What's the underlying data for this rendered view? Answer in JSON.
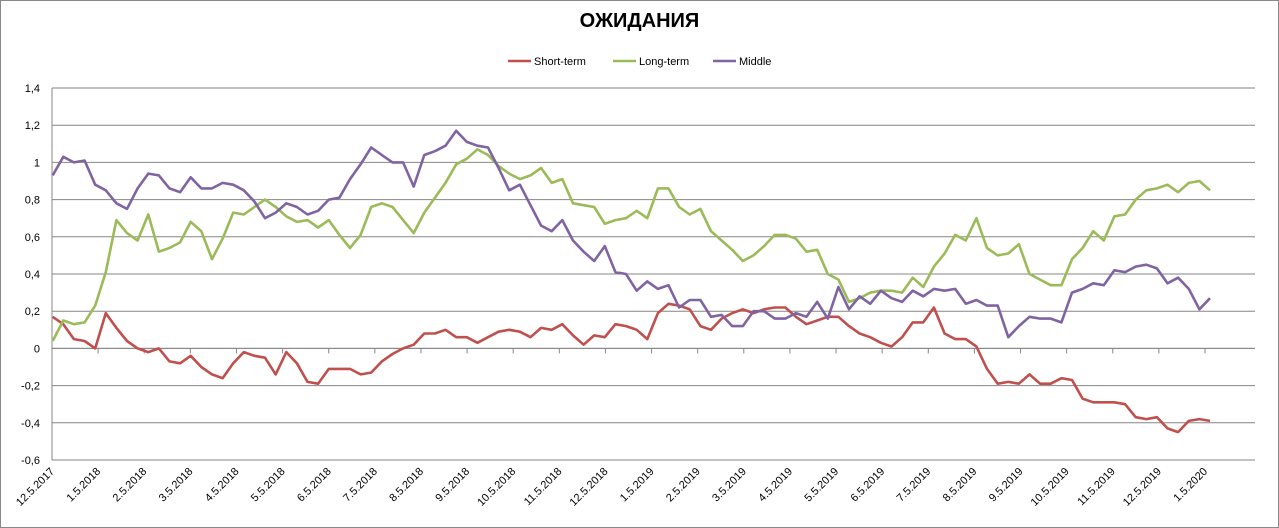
{
  "chart_data": {
    "type": "line",
    "title": "ОЖИДАНИЯ",
    "xlabel": "",
    "ylabel": "",
    "ylim": [
      -0.6,
      1.4
    ],
    "y_ticks": [
      "1,4",
      "1,2",
      "1",
      "0,8",
      "0,6",
      "0,4",
      "0,2",
      "0",
      "-0,2",
      "-0,4",
      "-0,6"
    ],
    "x_tick_labels": [
      "12.5.2017",
      "1.5.2018",
      "2.5.2018",
      "3.5.2018",
      "4.5.2018",
      "5.5.2018",
      "6.5.2018",
      "7.5.2018",
      "8.5.2018",
      "9.5.2018",
      "10.5.2018",
      "11.5.2018",
      "12.5.2018",
      "1.5.2019",
      "2.5.2019",
      "3.5.2019",
      "4.5.2019",
      "5.5.2019",
      "6.5.2019",
      "7.5.2019",
      "8.5.2019",
      "9.5.2019",
      "10.5.2019",
      "11.5.2019",
      "12.5.2019",
      "1.5.2020"
    ],
    "grid": true,
    "legend_position": "top",
    "series": [
      {
        "name": "Short-term",
        "color": "#C0504D",
        "values": [
          0.17,
          0.13,
          0.05,
          0.04,
          0.0,
          0.19,
          0.11,
          0.04,
          0.0,
          -0.02,
          0.0,
          -0.07,
          -0.08,
          -0.04,
          -0.1,
          -0.14,
          -0.16,
          -0.08,
          -0.02,
          -0.04,
          -0.05,
          -0.14,
          -0.02,
          -0.08,
          -0.18,
          -0.19,
          -0.11,
          -0.11,
          -0.11,
          -0.14,
          -0.13,
          -0.07,
          -0.03,
          0.0,
          0.02,
          0.08,
          0.08,
          0.1,
          0.06,
          0.06,
          0.03,
          0.06,
          0.09,
          0.1,
          0.09,
          0.06,
          0.11,
          0.1,
          0.13,
          0.07,
          0.02,
          0.07,
          0.06,
          0.13,
          0.12,
          0.1,
          0.05,
          0.19,
          0.24,
          0.23,
          0.21,
          0.12,
          0.1,
          0.16,
          0.19,
          0.21,
          0.19,
          0.21,
          0.22,
          0.22,
          0.17,
          0.13,
          0.15,
          0.17,
          0.17,
          0.12,
          0.08,
          0.06,
          0.03,
          0.01,
          0.06,
          0.14,
          0.14,
          0.22,
          0.08,
          0.05,
          0.05,
          0.01,
          -0.11,
          -0.19,
          -0.18,
          -0.19,
          -0.14,
          -0.19,
          -0.19,
          -0.16,
          -0.17,
          -0.27,
          -0.29,
          -0.29,
          -0.29,
          -0.3,
          -0.37,
          -0.38,
          -0.37,
          -0.43,
          -0.45,
          -0.39,
          -0.38,
          -0.39
        ]
      },
      {
        "name": "Long-term",
        "color": "#9BBB59",
        "values": [
          0.04,
          0.15,
          0.13,
          0.14,
          0.23,
          0.41,
          0.69,
          0.62,
          0.58,
          0.72,
          0.52,
          0.54,
          0.57,
          0.68,
          0.63,
          0.48,
          0.59,
          0.73,
          0.72,
          0.76,
          0.8,
          0.76,
          0.71,
          0.68,
          0.69,
          0.65,
          0.69,
          0.61,
          0.54,
          0.61,
          0.76,
          0.78,
          0.76,
          0.69,
          0.62,
          0.73,
          0.81,
          0.89,
          0.99,
          1.02,
          1.07,
          1.04,
          0.98,
          0.94,
          0.91,
          0.93,
          0.97,
          0.89,
          0.91,
          0.78,
          0.77,
          0.76,
          0.67,
          0.69,
          0.7,
          0.74,
          0.7,
          0.86,
          0.86,
          0.76,
          0.72,
          0.75,
          0.63,
          0.58,
          0.53,
          0.47,
          0.5,
          0.55,
          0.61,
          0.61,
          0.59,
          0.52,
          0.53,
          0.4,
          0.37,
          0.25,
          0.27,
          0.3,
          0.31,
          0.31,
          0.3,
          0.38,
          0.33,
          0.44,
          0.51,
          0.61,
          0.58,
          0.7,
          0.54,
          0.5,
          0.51,
          0.56,
          0.4,
          0.37,
          0.34,
          0.34,
          0.48,
          0.54,
          0.63,
          0.58,
          0.71,
          0.72,
          0.8,
          0.85,
          0.86,
          0.88,
          0.84,
          0.89,
          0.9,
          0.85
        ]
      },
      {
        "name": "Middle",
        "color": "#8064A2",
        "values": [
          0.93,
          1.03,
          1.0,
          1.01,
          0.88,
          0.85,
          0.78,
          0.75,
          0.86,
          0.94,
          0.93,
          0.86,
          0.84,
          0.92,
          0.86,
          0.86,
          0.89,
          0.88,
          0.85,
          0.79,
          0.7,
          0.73,
          0.78,
          0.76,
          0.72,
          0.74,
          0.8,
          0.81,
          0.91,
          0.99,
          1.08,
          1.04,
          1.0,
          1.0,
          0.87,
          1.04,
          1.06,
          1.09,
          1.17,
          1.11,
          1.09,
          1.08,
          0.97,
          0.85,
          0.88,
          0.77,
          0.66,
          0.63,
          0.69,
          0.58,
          0.52,
          0.47,
          0.55,
          0.41,
          0.4,
          0.31,
          0.36,
          0.32,
          0.34,
          0.22,
          0.26,
          0.26,
          0.17,
          0.18,
          0.12,
          0.12,
          0.2,
          0.2,
          0.16,
          0.16,
          0.19,
          0.17,
          0.25,
          0.16,
          0.33,
          0.21,
          0.28,
          0.24,
          0.31,
          0.27,
          0.25,
          0.31,
          0.28,
          0.32,
          0.31,
          0.32,
          0.24,
          0.26,
          0.23,
          0.23,
          0.06,
          0.12,
          0.17,
          0.16,
          0.16,
          0.14,
          0.3,
          0.32,
          0.35,
          0.34,
          0.42,
          0.41,
          0.44,
          0.45,
          0.43,
          0.35,
          0.38,
          0.32,
          0.21,
          0.27
        ]
      }
    ]
  }
}
